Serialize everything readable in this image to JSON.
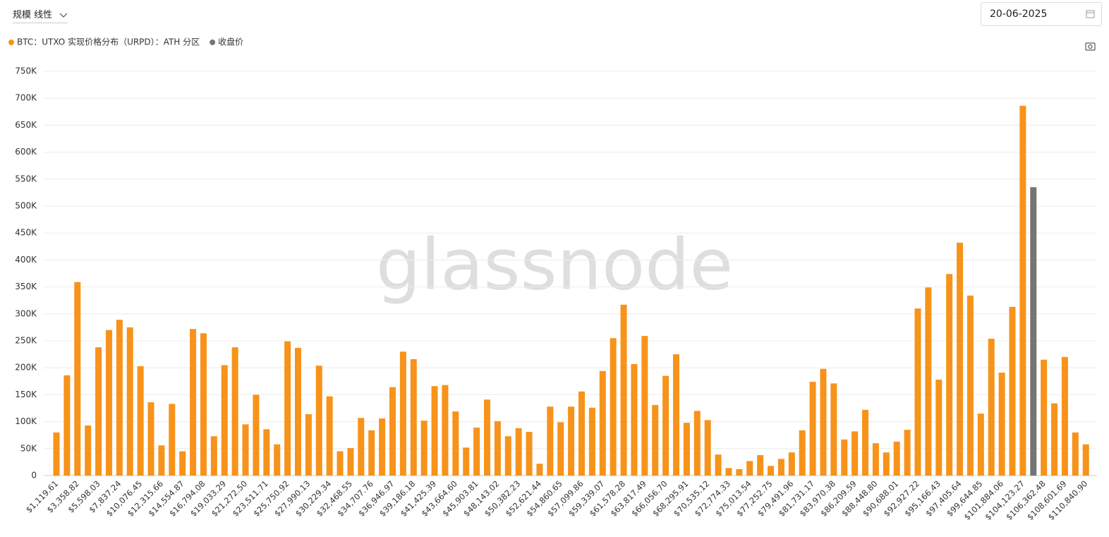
{
  "controls": {
    "scale_label": "规模",
    "scale_value": "线性",
    "date": "20-06-2025"
  },
  "watermark": "glassnode",
  "chart_data": {
    "type": "bar",
    "categories": [
      "$1,119.61",
      null,
      "$3,358.82",
      null,
      "$5,598.03",
      null,
      "$7,837.24",
      null,
      "$10,076.45",
      null,
      "$12,315.66",
      null,
      "$14,554.87",
      null,
      "$16,794.08",
      null,
      "$19,033.29",
      null,
      "$21,272.50",
      null,
      "$23,511.71",
      null,
      "$25,750.92",
      null,
      "$27,990.13",
      null,
      "$30,229.34",
      null,
      "$32,468.55",
      null,
      "$34,707.76",
      null,
      "$36,946.97",
      null,
      "$39,186.18",
      null,
      "$41,425.39",
      null,
      "$43,664.60",
      null,
      "$45,903.81",
      null,
      "$48,143.02",
      null,
      "$50,382.23",
      null,
      "$52,621.44",
      null,
      "$54,860.65",
      null,
      "$57,099.86",
      null,
      "$59,339.07",
      null,
      "$61,578.28",
      null,
      "$63,817.49",
      null,
      "$66,056.70",
      null,
      "$68,295.91",
      null,
      "$70,535.12",
      null,
      "$72,774.33",
      null,
      "$75,013.54",
      null,
      "$77,252.75",
      null,
      "$79,491.96",
      null,
      "$81,731.17",
      null,
      "$83,970.38",
      null,
      "$86,209.59",
      null,
      "$88,448.80",
      null,
      "$90,688.01",
      null,
      "$92,927.22",
      null,
      "$95,166.43",
      null,
      "$97,405.64",
      null,
      "$99,644.85",
      null,
      "$101,884.06",
      null,
      "$104,123.27",
      null,
      "$106,362.48",
      null,
      "$108,601.69",
      null,
      "$110,840.90"
    ],
    "series": [
      {
        "name": "BTC：UTXO 实现价格分布（URPD）：ATH 分区",
        "color": "#f7931a",
        "values": [
          80000,
          186000,
          359000,
          93000,
          238000,
          270000,
          289000,
          275000,
          203000,
          136000,
          56000,
          133000,
          45000,
          272000,
          264000,
          73000,
          205000,
          238000,
          95000,
          150000,
          86000,
          58000,
          249000,
          237000,
          114000,
          204000,
          147000,
          45000,
          51000,
          107000,
          84000,
          106000,
          164000,
          230000,
          216000,
          102000,
          166000,
          168000,
          119000,
          52000,
          89000,
          141000,
          101000,
          73000,
          88000,
          81000,
          22000,
          128000,
          99000,
          128000,
          156000,
          126000,
          194000,
          255000,
          317000,
          207000,
          259000,
          131000,
          185000,
          225000,
          98000,
          120000,
          103000,
          39000,
          14000,
          12000,
          27000,
          38000,
          18000,
          31000,
          43000,
          84000,
          174000,
          198000,
          171000,
          67000,
          82000,
          122000,
          60000,
          43000,
          63000,
          85000,
          310000,
          349000,
          178000,
          374000,
          432000,
          334000,
          115000,
          254000,
          191000,
          313000,
          686000,
          null,
          215000,
          134000,
          220000,
          80000,
          58000
        ]
      },
      {
        "name": "收盘价",
        "color": "#757575",
        "values": [
          null,
          null,
          null,
          null,
          null,
          null,
          null,
          null,
          null,
          null,
          null,
          null,
          null,
          null,
          null,
          null,
          null,
          null,
          null,
          null,
          null,
          null,
          null,
          null,
          null,
          null,
          null,
          null,
          null,
          null,
          null,
          null,
          null,
          null,
          null,
          null,
          null,
          null,
          null,
          null,
          null,
          null,
          null,
          null,
          null,
          null,
          null,
          null,
          null,
          null,
          null,
          null,
          null,
          null,
          null,
          null,
          null,
          null,
          null,
          null,
          null,
          null,
          null,
          null,
          null,
          null,
          null,
          null,
          null,
          null,
          null,
          null,
          null,
          null,
          null,
          null,
          null,
          null,
          null,
          null,
          null,
          null,
          null,
          null,
          null,
          null,
          null,
          null,
          null,
          null,
          null,
          null,
          null,
          535000,
          null,
          null,
          null,
          null,
          null
        ]
      }
    ],
    "ylim": [
      0,
      750000
    ],
    "yticks": [
      0,
      {
        "value": 50000,
        "label": "50K"
      },
      {
        "value": 100000,
        "label": "100K"
      },
      {
        "value": 150000,
        "label": "150K"
      },
      {
        "value": 200000,
        "label": "200K"
      },
      {
        "value": 250000,
        "label": "250K"
      },
      {
        "value": 300000,
        "label": "300K"
      },
      {
        "value": 350000,
        "label": "350K"
      },
      {
        "value": 400000,
        "label": "400K"
      },
      {
        "value": 450000,
        "label": "450K"
      },
      {
        "value": 500000,
        "label": "500K"
      },
      {
        "value": 550000,
        "label": "550K"
      },
      {
        "value": 600000,
        "label": "600K"
      },
      {
        "value": 650000,
        "label": "650K"
      },
      {
        "value": 700000,
        "label": "700K"
      },
      {
        "value": 750000,
        "label": "750K"
      }
    ],
    "grid": true
  }
}
